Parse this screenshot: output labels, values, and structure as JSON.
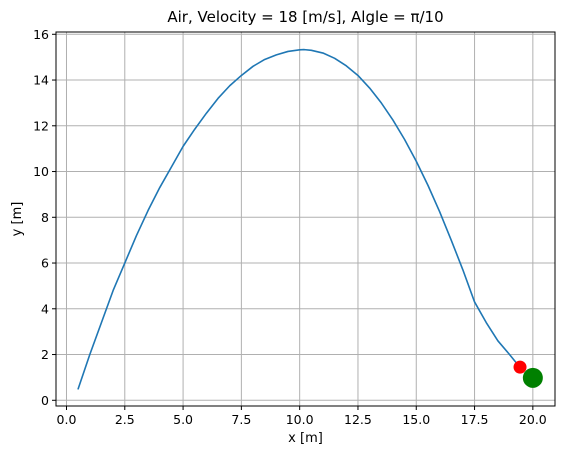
{
  "chart_data": {
    "type": "line",
    "title": "Air, Velocity = 18 [m/s], Algle = π/10",
    "xlabel": "x [m]",
    "ylabel": "y [m]",
    "xlim": [
      -0.45,
      20.95
    ],
    "ylim": [
      -0.25,
      16.1
    ],
    "grid": true,
    "x_ticks": [
      0.0,
      2.5,
      5.0,
      7.5,
      10.0,
      12.5,
      15.0,
      17.5,
      20.0
    ],
    "x_tick_labels": [
      "0.0",
      "2.5",
      "5.0",
      "7.5",
      "10.0",
      "12.5",
      "15.0",
      "17.5",
      "20.0"
    ],
    "y_ticks": [
      0,
      2,
      4,
      6,
      8,
      10,
      12,
      14,
      16
    ],
    "y_tick_labels": [
      "0",
      "2",
      "4",
      "6",
      "8",
      "10",
      "12",
      "14",
      "16"
    ],
    "series": [
      {
        "color": "#1f77b4",
        "x": [
          0.5,
          1.0,
          1.5,
          2.0,
          2.5,
          3.0,
          3.5,
          4.0,
          4.5,
          5.0,
          5.5,
          6.0,
          6.5,
          7.0,
          7.5,
          8.0,
          8.5,
          9.0,
          9.5,
          10.0,
          10.2,
          10.5,
          11.0,
          11.5,
          12.0,
          12.5,
          13.0,
          13.5,
          14.0,
          14.5,
          15.0,
          15.5,
          16.0,
          16.5,
          17.0,
          17.5,
          18.0,
          18.5,
          19.0,
          19.4
        ],
        "y": [
          0.5,
          2.0,
          3.4,
          4.8,
          6.0,
          7.2,
          8.3,
          9.3,
          10.2,
          11.1,
          11.85,
          12.55,
          13.2,
          13.75,
          14.2,
          14.6,
          14.9,
          15.1,
          15.25,
          15.32,
          15.33,
          15.3,
          15.18,
          14.95,
          14.62,
          14.2,
          13.65,
          13.0,
          12.25,
          11.4,
          10.45,
          9.4,
          8.25,
          7.0,
          5.7,
          4.3,
          3.4,
          2.6,
          2.0,
          1.5
        ]
      }
    ],
    "markers": [
      {
        "x": 19.45,
        "y": 1.45,
        "color": "#ff0000",
        "size": "small"
      },
      {
        "x": 20.0,
        "y": 0.98,
        "color": "#008000",
        "size": "large"
      }
    ],
    "colors": {
      "axes": "#000000",
      "grid": "#b0b0b0",
      "line": "#1f77b4"
    }
  }
}
